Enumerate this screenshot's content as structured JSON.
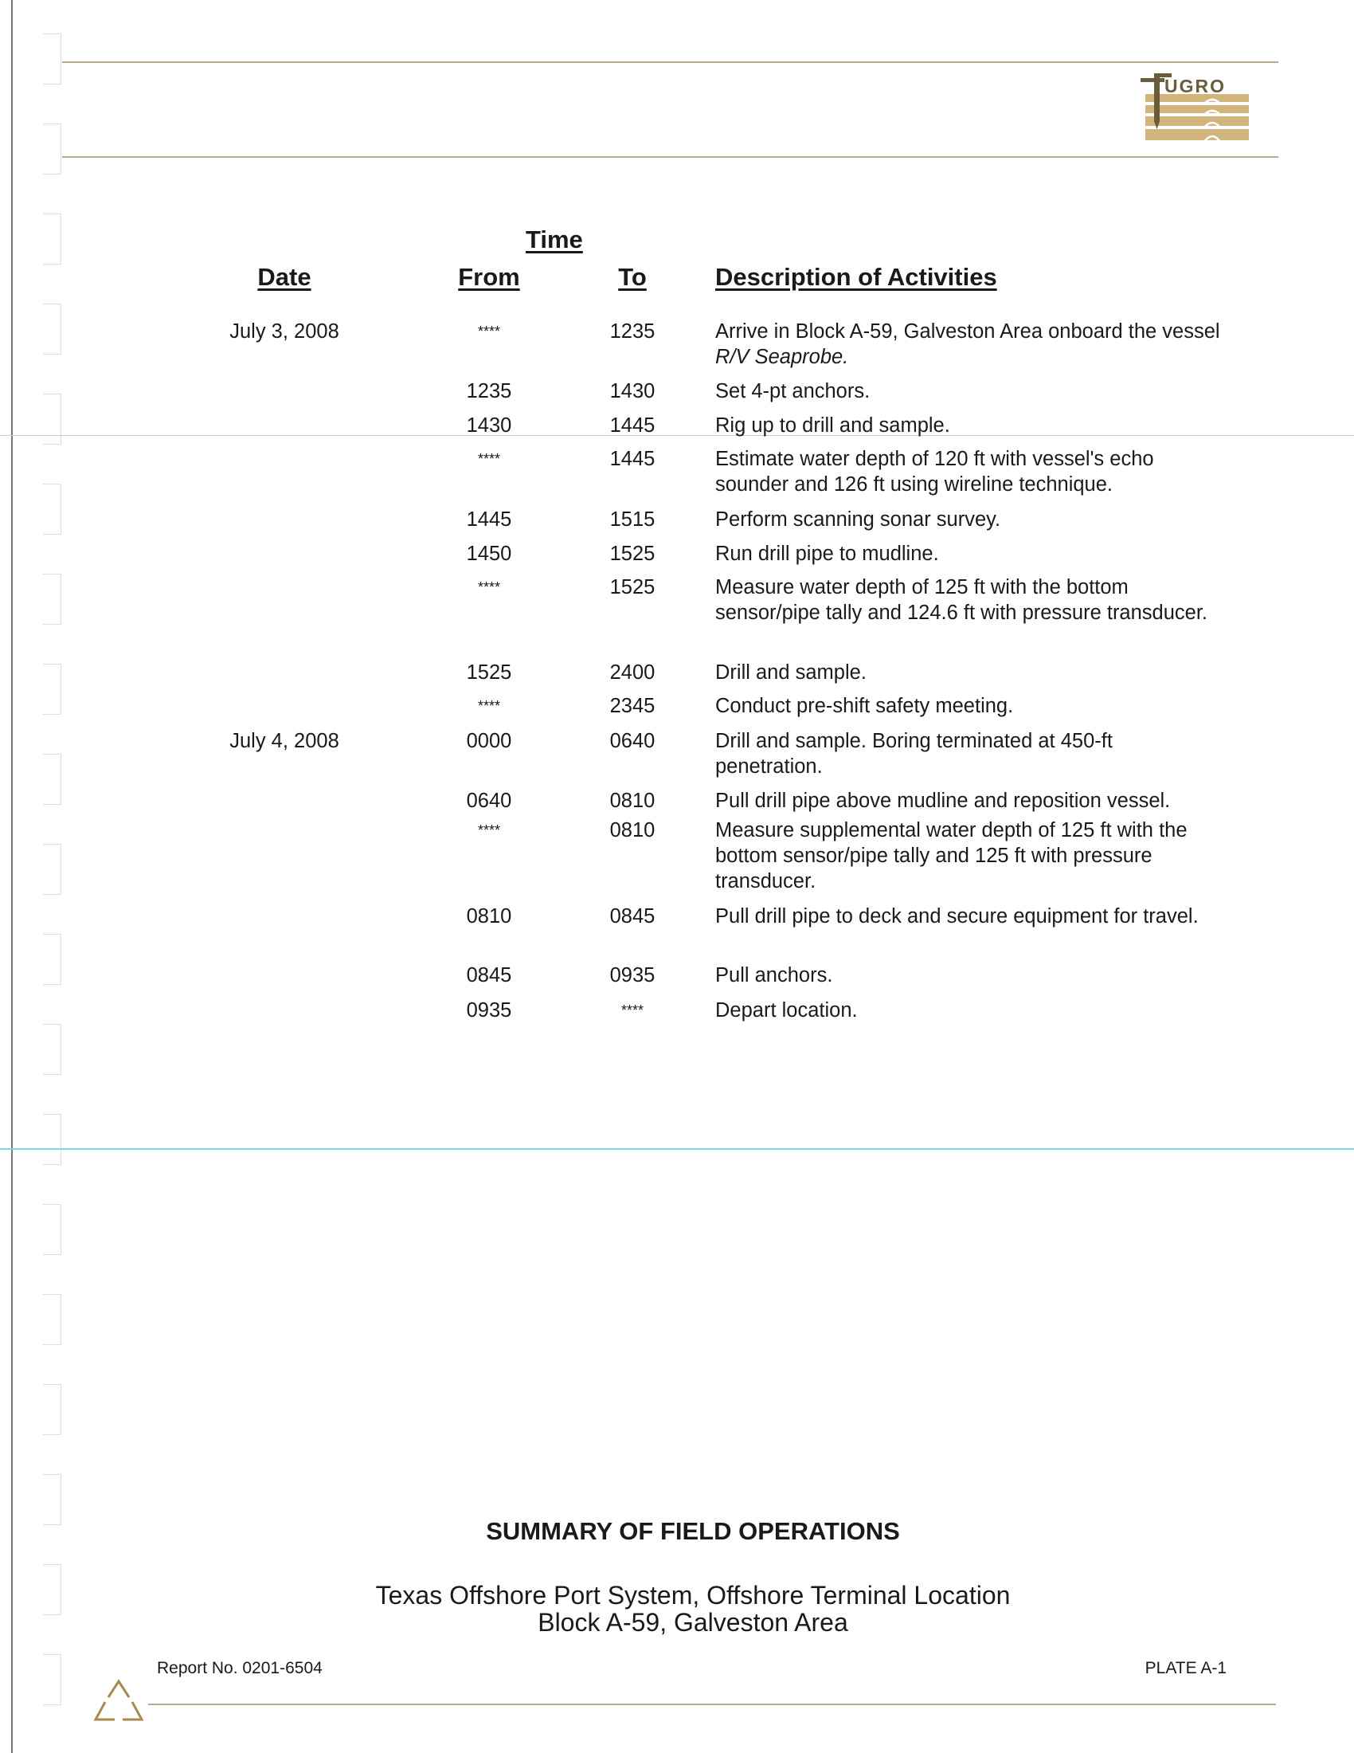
{
  "logo": {
    "text": "FUGRO",
    "color": "#c9a968"
  },
  "table": {
    "time_header": "Time",
    "headers": {
      "date": "Date",
      "from": "From",
      "to": "To",
      "description": "Description of Activities"
    },
    "rows": [
      {
        "date": "July 3, 2008",
        "from": "****",
        "to": "1235",
        "desc": "Arrive in Block A-59, Galveston Area onboard the vessel ",
        "desc_italic": "R/V Seaprobe."
      },
      {
        "date": "",
        "from": "1235",
        "to": "1430",
        "desc": "Set 4-pt anchors."
      },
      {
        "date": "",
        "from": "1430",
        "to": "1445",
        "desc": "Rig up to drill and sample."
      },
      {
        "date": "",
        "from": "****",
        "to": "1445",
        "desc": "Estimate water depth of 120 ft with vessel's echo sounder and 126 ft using wireline technique."
      },
      {
        "date": "",
        "from": "1445",
        "to": "1515",
        "desc": "Perform scanning sonar survey."
      },
      {
        "date": "",
        "from": "1450",
        "to": "1525",
        "desc": "Run drill pipe to mudline."
      },
      {
        "date": "",
        "from": "****",
        "to": "1525",
        "desc": "Measure water depth of 125 ft with the bottom sensor/pipe tally and 124.6 ft with pressure transducer."
      },
      {
        "date": "",
        "from": "1525",
        "to": "2400",
        "desc": "Drill and sample."
      },
      {
        "date": "",
        "from": "****",
        "to": "2345",
        "desc": "Conduct pre-shift safety meeting."
      },
      {
        "date": "July 4, 2008",
        "from": "0000",
        "to": "0640",
        "desc": "Drill and sample.  Boring terminated at 450-ft penetration."
      },
      {
        "date": "",
        "from": "0640",
        "to": "0810",
        "desc": "Pull drill pipe above mudline and reposition vessel."
      },
      {
        "date": "",
        "from": "****",
        "to": "0810",
        "desc": "Measure supplemental water depth of 125 ft with the bottom sensor/pipe tally and 125 ft with pressure transducer."
      },
      {
        "date": "",
        "from": "0810",
        "to": "0845",
        "desc": "Pull drill pipe to deck and secure equipment for travel."
      },
      {
        "date": "",
        "from": "0845",
        "to": "0935",
        "desc": "Pull anchors."
      },
      {
        "date": "",
        "from": "0935",
        "to": "****",
        "desc": "Depart location."
      }
    ]
  },
  "footer": {
    "title": "SUMMARY OF FIELD OPERATIONS",
    "subtitle1": "Texas Offshore Port System, Offshore Terminal Location",
    "subtitle2": "Block A-59, Galveston Area",
    "report_no": "Report No. 0201-6504",
    "plate": "PLATE A-1"
  }
}
